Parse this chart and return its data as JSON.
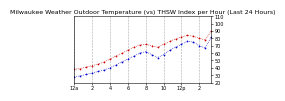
{
  "title": "Milwaukee Weather Outdoor Temperature (vs) THSW Index per Hour (Last 24 Hours)",
  "bg_color": "#ffffff",
  "plot_bg": "#ffffff",
  "grid_color": "#aaaaaa",
  "xlim": [
    0,
    23
  ],
  "ylim": [
    20,
    110
  ],
  "yticks": [
    20,
    30,
    40,
    50,
    60,
    70,
    80,
    90,
    100,
    110
  ],
  "ytick_labels": [
    "20",
    "30",
    "40",
    "50",
    "60",
    "70",
    "80",
    "90",
    "100",
    "110"
  ],
  "hours": [
    0,
    1,
    2,
    3,
    4,
    5,
    6,
    7,
    8,
    9,
    10,
    11,
    12,
    13,
    14,
    15,
    16,
    17,
    18,
    19,
    20,
    21,
    22,
    23
  ],
  "temp": [
    38,
    39,
    41,
    43,
    45,
    48,
    52,
    56,
    60,
    64,
    68,
    71,
    72,
    70,
    68,
    72,
    76,
    79,
    82,
    84,
    83,
    80,
    78,
    90
  ],
  "thsw": [
    28,
    29,
    31,
    33,
    35,
    37,
    40,
    44,
    48,
    52,
    56,
    60,
    62,
    58,
    54,
    58,
    64,
    68,
    72,
    76,
    75,
    70,
    67,
    82
  ],
  "temp_color": "#cc0000",
  "thsw_color": "#0000cc",
  "xtick_pos": [
    0,
    3,
    6,
    9,
    12,
    15,
    18,
    21
  ],
  "xtick_labels": [
    "12a",
    "2",
    "4",
    "6",
    "8",
    "10",
    "12p",
    "2"
  ],
  "vgrid_positions": [
    0,
    3,
    6,
    9,
    12,
    15,
    18,
    21
  ],
  "marker_size": 2.5,
  "title_fontsize": 4.5,
  "tick_fontsize": 3.5
}
